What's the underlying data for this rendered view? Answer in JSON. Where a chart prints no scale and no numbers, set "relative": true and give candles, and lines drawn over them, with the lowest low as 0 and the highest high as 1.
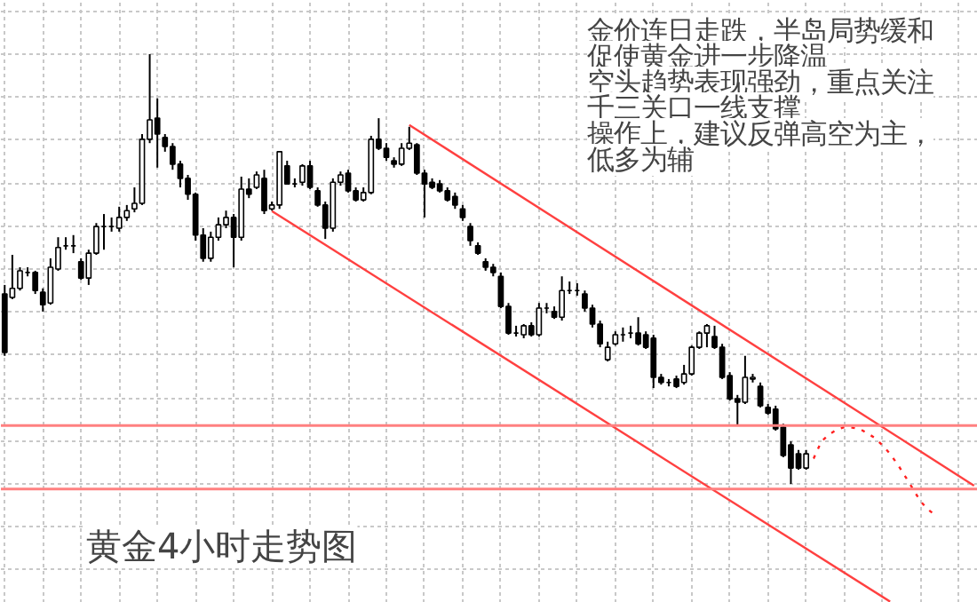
{
  "chart_data": {
    "type": "candlestick",
    "title": "黄金4小时走势图",
    "relative": true,
    "tick_labels": false,
    "grid": true,
    "annotations": [
      "金价连日走跌，半岛局势缓和",
      "促使黄金进一步降温",
      "空头趋势表现强劲，重点关注",
      "千三关口一线支撑",
      "操作上，建议反弹高空为主，",
      "低多为辅"
    ],
    "categories": [
      null,
      null,
      null,
      null,
      null,
      null,
      null,
      null,
      null,
      null,
      null,
      null,
      null,
      null,
      null,
      null,
      null,
      null,
      null,
      null,
      null,
      null,
      null,
      null,
      null,
      null,
      null,
      null,
      null,
      null,
      null,
      null,
      null,
      null,
      null,
      null,
      null,
      null,
      null,
      null,
      null,
      null,
      null,
      null,
      null,
      null,
      null,
      null,
      null,
      null,
      null,
      null,
      null,
      null,
      null,
      null,
      null,
      null,
      null,
      null,
      null,
      null,
      null,
      null,
      null,
      null,
      null,
      null,
      null,
      null,
      null,
      null,
      null,
      null,
      null,
      null,
      null,
      null,
      null,
      null,
      null,
      null,
      null,
      null,
      null,
      null,
      null,
      null,
      null,
      null,
      null,
      null,
      null,
      null,
      null,
      null,
      null,
      null,
      null,
      null,
      null,
      null,
      null,
      null,
      null,
      null,
      null,
      null,
      null,
      null,
      null,
      null,
      null,
      null,
      null,
      null,
      null,
      null,
      null,
      null,
      null,
      null,
      null,
      null,
      null,
      null,
      null,
      null
    ],
    "ohlc": [
      [
        0.442,
        0.463,
        0.298,
        0.306
      ],
      [
        0.434,
        0.533,
        0.43,
        0.455
      ],
      [
        0.455,
        0.504,
        0.45,
        0.496
      ],
      [
        0.492,
        0.504,
        0.483,
        0.492
      ],
      [
        0.492,
        0.496,
        0.442,
        0.45
      ],
      [
        0.446,
        0.455,
        0.401,
        0.417
      ],
      [
        0.421,
        0.525,
        0.417,
        0.504
      ],
      [
        0.5,
        0.574,
        0.496,
        0.55
      ],
      [
        0.554,
        0.574,
        0.545,
        0.554
      ],
      [
        0.554,
        0.579,
        0.537,
        0.554
      ],
      [
        0.517,
        0.525,
        0.475,
        0.479
      ],
      [
        0.479,
        0.545,
        0.463,
        0.537
      ],
      [
        0.537,
        0.607,
        0.533,
        0.599
      ],
      [
        0.599,
        0.628,
        0.545,
        0.599
      ],
      [
        0.599,
        0.62,
        0.587,
        0.599
      ],
      [
        0.595,
        0.645,
        0.587,
        0.62
      ],
      [
        0.62,
        0.649,
        0.612,
        0.636
      ],
      [
        0.64,
        0.69,
        0.632,
        0.653
      ],
      [
        0.653,
        0.814,
        0.649,
        0.802
      ],
      [
        0.802,
        1.0,
        0.793,
        0.847
      ],
      [
        0.851,
        0.897,
        0.736,
        0.814
      ],
      [
        0.806,
        0.814,
        0.773,
        0.785
      ],
      [
        0.785,
        0.793,
        0.731,
        0.744
      ],
      [
        0.744,
        0.752,
        0.69,
        0.711
      ],
      [
        0.711,
        0.719,
        0.661,
        0.674
      ],
      [
        0.674,
        0.678,
        0.566,
        0.579
      ],
      [
        0.579,
        0.595,
        0.517,
        0.525
      ],
      [
        0.525,
        0.587,
        0.517,
        0.574
      ],
      [
        0.574,
        0.62,
        0.566,
        0.603
      ],
      [
        0.603,
        0.636,
        0.595,
        0.62
      ],
      [
        0.62,
        0.628,
        0.504,
        0.574
      ],
      [
        0.574,
        0.715,
        0.566,
        0.686
      ],
      [
        0.686,
        0.711,
        0.665,
        0.674
      ],
      [
        0.69,
        0.727,
        0.686,
        0.719
      ],
      [
        0.711,
        0.731,
        0.628,
        0.636
      ],
      [
        0.64,
        0.657,
        0.636,
        0.649
      ],
      [
        0.649,
        0.773,
        0.64,
        0.773
      ],
      [
        0.74,
        0.752,
        0.698,
        0.698
      ],
      [
        0.698,
        0.711,
        0.69,
        0.698
      ],
      [
        0.702,
        0.744,
        0.694,
        0.74
      ],
      [
        0.74,
        0.752,
        0.686,
        0.69
      ],
      [
        0.682,
        0.69,
        0.645,
        0.649
      ],
      [
        0.649,
        0.657,
        0.57,
        0.595
      ],
      [
        0.595,
        0.711,
        0.587,
        0.702
      ],
      [
        0.702,
        0.727,
        0.694,
        0.719
      ],
      [
        0.723,
        0.731,
        0.678,
        0.682
      ],
      [
        0.682,
        0.69,
        0.657,
        0.661
      ],
      [
        0.661,
        0.69,
        0.657,
        0.678
      ],
      [
        0.678,
        0.81,
        0.674,
        0.802
      ],
      [
        0.802,
        0.851,
        0.777,
        0.781
      ],
      [
        0.781,
        0.793,
        0.752,
        0.76
      ],
      [
        0.752,
        0.76,
        0.736,
        0.744
      ],
      [
        0.744,
        0.793,
        0.74,
        0.781
      ],
      [
        0.781,
        0.831,
        0.777,
        0.793
      ],
      [
        0.789,
        0.793,
        0.719,
        0.723
      ],
      [
        0.723,
        0.731,
        0.62,
        0.698
      ],
      [
        0.702,
        0.711,
        0.686,
        0.69
      ],
      [
        0.698,
        0.707,
        0.678,
        0.682
      ],
      [
        0.682,
        0.69,
        0.657,
        0.661
      ],
      [
        0.669,
        0.678,
        0.64,
        0.649
      ],
      [
        0.64,
        0.649,
        0.612,
        0.62
      ],
      [
        0.599,
        0.607,
        0.554,
        0.566
      ],
      [
        0.554,
        0.562,
        0.533,
        0.537
      ],
      [
        0.517,
        0.525,
        0.496,
        0.504
      ],
      [
        0.504,
        0.512,
        0.483,
        0.492
      ],
      [
        0.483,
        0.492,
        0.409,
        0.413
      ],
      [
        0.413,
        0.421,
        0.347,
        0.351
      ],
      [
        0.351,
        0.368,
        0.343,
        0.351
      ],
      [
        0.347,
        0.372,
        0.339,
        0.368
      ],
      [
        0.368,
        0.376,
        0.343,
        0.347
      ],
      [
        0.347,
        0.421,
        0.343,
        0.409
      ],
      [
        0.409,
        0.421,
        0.397,
        0.409
      ],
      [
        0.401,
        0.413,
        0.384,
        0.388
      ],
      [
        0.388,
        0.483,
        0.38,
        0.45
      ],
      [
        0.45,
        0.471,
        0.442,
        0.45
      ],
      [
        0.45,
        0.467,
        0.438,
        0.45
      ],
      [
        0.442,
        0.45,
        0.401,
        0.409
      ],
      [
        0.409,
        0.417,
        0.364,
        0.372
      ],
      [
        0.372,
        0.38,
        0.318,
        0.326
      ],
      [
        0.289,
        0.331,
        0.285,
        0.318
      ],
      [
        0.326,
        0.355,
        0.322,
        0.347
      ],
      [
        0.347,
        0.364,
        0.331,
        0.347
      ],
      [
        0.351,
        0.368,
        0.339,
        0.351
      ],
      [
        0.351,
        0.388,
        0.322,
        0.326
      ],
      [
        0.347,
        0.355,
        0.314,
        0.318
      ],
      [
        0.339,
        0.347,
        0.223,
        0.248
      ],
      [
        0.248,
        0.256,
        0.231,
        0.236
      ],
      [
        0.236,
        0.244,
        0.227,
        0.236
      ],
      [
        0.244,
        0.252,
        0.223,
        0.227
      ],
      [
        0.236,
        0.277,
        0.231,
        0.256
      ],
      [
        0.256,
        0.322,
        0.252,
        0.318
      ],
      [
        0.318,
        0.355,
        0.314,
        0.351
      ],
      [
        0.351,
        0.372,
        0.318,
        0.368
      ],
      [
        0.343,
        0.368,
        0.314,
        0.318
      ],
      [
        0.318,
        0.326,
        0.244,
        0.248
      ],
      [
        0.252,
        0.26,
        0.194,
        0.198
      ],
      [
        0.198,
        0.207,
        0.136,
        0.19
      ],
      [
        0.19,
        0.298,
        0.186,
        0.248
      ],
      [
        0.244,
        0.256,
        0.236,
        0.248
      ],
      [
        0.227,
        0.236,
        0.178,
        0.182
      ],
      [
        0.178,
        0.186,
        0.161,
        0.165
      ],
      [
        0.174,
        0.182,
        0.124,
        0.128
      ],
      [
        0.132,
        0.14,
        0.062,
        0.066
      ],
      [
        0.091,
        0.099,
        0,
        0.037
      ],
      [
        0.07,
        0.079,
        0.033,
        0.037
      ],
      [
        0.037,
        0.079,
        0.033,
        0.07
      ],
      null,
      null,
      null,
      null,
      null,
      null,
      null,
      null,
      null,
      null,
      null,
      null,
      null,
      null,
      null,
      null,
      null,
      null,
      null,
      null,
      null,
      null
    ],
    "series": [
      {
        "type": "line",
        "color": "#ff4040",
        "values": [
          null,
          null,
          null,
          null,
          null,
          null,
          null,
          null,
          null,
          null,
          null,
          null,
          null,
          null,
          null,
          null,
          null,
          null,
          null,
          null,
          null,
          null,
          null,
          null,
          null,
          null,
          null,
          null,
          null,
          null,
          null,
          null,
          null,
          null,
          null,
          null,
          null,
          null,
          null,
          null,
          null,
          null,
          null,
          null,
          null,
          null,
          null,
          null,
          null,
          null,
          null,
          null,
          null,
          0.835,
          null,
          null,
          null,
          null,
          null,
          null,
          null,
          null,
          null,
          null,
          null,
          null,
          null,
          null,
          null,
          null,
          null,
          null,
          null,
          null,
          null,
          null,
          null,
          null,
          null,
          null,
          null,
          null,
          null,
          null,
          null,
          null,
          null,
          null,
          null,
          null,
          null,
          null,
          null,
          null,
          null,
          null,
          null,
          null,
          null,
          null,
          null,
          null,
          null,
          null,
          null,
          null,
          null,
          null,
          null,
          null,
          null,
          null,
          null,
          null,
          null,
          null,
          null,
          null,
          null,
          null,
          null,
          null,
          null,
          null,
          null,
          null,
          null,
          -0.004
        ]
      },
      {
        "type": "line",
        "color": "#ff4040",
        "values": [
          null,
          null,
          null,
          null,
          null,
          null,
          null,
          null,
          null,
          null,
          null,
          null,
          null,
          null,
          null,
          null,
          null,
          null,
          null,
          null,
          null,
          null,
          null,
          null,
          null,
          null,
          null,
          null,
          null,
          null,
          null,
          null,
          null,
          null,
          null,
          0.635,
          null,
          null,
          null,
          null,
          null,
          null,
          null,
          null,
          null,
          null,
          null,
          null,
          null,
          null,
          null,
          null,
          null,
          null,
          null,
          null,
          null,
          null,
          null,
          null,
          null,
          null,
          null,
          null,
          null,
          null,
          null,
          null,
          null,
          null,
          null,
          null,
          null,
          null,
          null,
          null,
          null,
          null,
          null,
          null,
          null,
          null,
          null,
          null,
          null,
          null,
          null,
          null,
          null,
          null,
          null,
          null,
          null,
          null,
          null,
          null,
          null,
          null,
          null,
          null,
          null,
          null,
          null,
          null,
          null,
          null,
          null,
          null,
          null,
          null,
          null,
          null,
          null,
          null,
          null,
          null,
          -0.274,
          null,
          null,
          null,
          null,
          null,
          null,
          null,
          null,
          null,
          null,
          null
        ]
      },
      {
        "type": "line",
        "color": "#ff2020",
        "line_style": "dotted",
        "values": [
          null,
          null,
          null,
          null,
          null,
          null,
          null,
          null,
          null,
          null,
          null,
          null,
          null,
          null,
          null,
          null,
          null,
          null,
          null,
          null,
          null,
          null,
          null,
          null,
          null,
          null,
          null,
          null,
          null,
          null,
          null,
          null,
          null,
          null,
          null,
          null,
          null,
          null,
          null,
          null,
          null,
          null,
          null,
          null,
          null,
          null,
          null,
          null,
          null,
          null,
          null,
          null,
          null,
          null,
          null,
          null,
          null,
          null,
          null,
          null,
          null,
          null,
          null,
          null,
          null,
          null,
          null,
          null,
          null,
          null,
          null,
          null,
          null,
          null,
          null,
          null,
          null,
          null,
          null,
          null,
          null,
          null,
          null,
          null,
          null,
          null,
          null,
          null,
          null,
          null,
          null,
          null,
          null,
          null,
          null,
          null,
          null,
          null,
          null,
          null,
          null,
          null,
          null,
          null,
          null,
          0.041,
          0.06,
          0.099,
          0.115,
          0.126,
          0.132,
          0.131,
          0.128,
          0.118,
          0.107,
          0.09,
          0.07,
          0.045,
          0.017,
          -0.012,
          -0.041,
          -0.06,
          -0.074,
          null,
          null,
          null,
          null,
          null
        ]
      }
    ],
    "ref_lines": [
      {
        "axis": "y",
        "value": 0.136,
        "color": "#ff8080"
      },
      {
        "axis": "y",
        "value": -0.012,
        "color": "#ff8080"
      }
    ]
  }
}
